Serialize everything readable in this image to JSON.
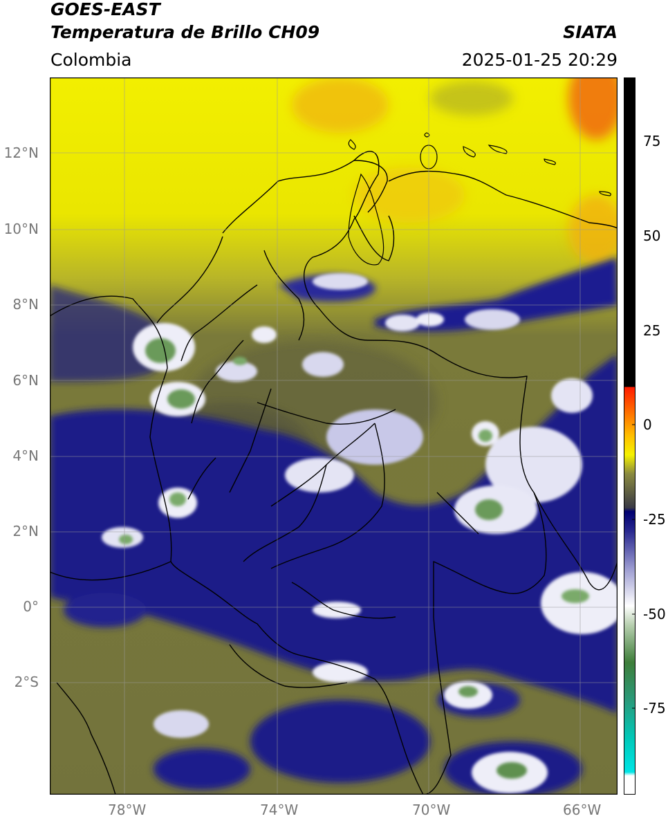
{
  "header": {
    "satellite": "GOES-EAST",
    "product": "Temperatura de Brillo CH09",
    "region": "Colombia",
    "source": "SIATA",
    "datetime": "2025-01-25 20:29"
  },
  "map": {
    "lat_labels": [
      "12°N",
      "10°N",
      "8°N",
      "6°N",
      "4°N",
      "2°N",
      "0°",
      "2°S"
    ],
    "lon_labels": [
      "78°W",
      "74°W",
      "70°W",
      "66°W"
    ],
    "lon_range": [
      -80,
      -65
    ],
    "lat_range": [
      -5,
      14
    ],
    "gridlines": true,
    "colors": {
      "warm_yellow": "#f2ee00",
      "warm_orange": "#f08a10",
      "olive": "#7a7a3a",
      "navy": "#1a1a8a",
      "cloud_white": "#eeeef8",
      "core_green": "#6a9a5a",
      "border": "#000000"
    }
  },
  "colorbar": {
    "tick_labels": [
      "75",
      "50",
      "25",
      "0",
      "-25",
      "-50",
      "-75"
    ],
    "vmin": -100,
    "vmax": 90,
    "stops": [
      {
        "v": -95,
        "c": "#ffffff"
      },
      {
        "v": -94,
        "c": "#00e5e5"
      },
      {
        "v": -85,
        "c": "#00c8b8"
      },
      {
        "v": -75,
        "c": "#2a9a7a"
      },
      {
        "v": -65,
        "c": "#3e7e3a"
      },
      {
        "v": -55,
        "c": "#b8d0b0"
      },
      {
        "v": -50,
        "c": "#ffffff"
      },
      {
        "v": -40,
        "c": "#9a9ad0"
      },
      {
        "v": -30,
        "c": "#26268e"
      },
      {
        "v": -25,
        "c": "#000070"
      },
      {
        "v": -24,
        "c": "#3a3a45"
      },
      {
        "v": -15,
        "c": "#8a8a40"
      },
      {
        "v": -10,
        "c": "#f5f200"
      },
      {
        "v": -5,
        "c": "#ffc000"
      },
      {
        "v": 8,
        "c": "#ff1a00"
      },
      {
        "v": 8.01,
        "c": "#000000"
      },
      {
        "v": 90,
        "c": "#000000"
      }
    ]
  }
}
